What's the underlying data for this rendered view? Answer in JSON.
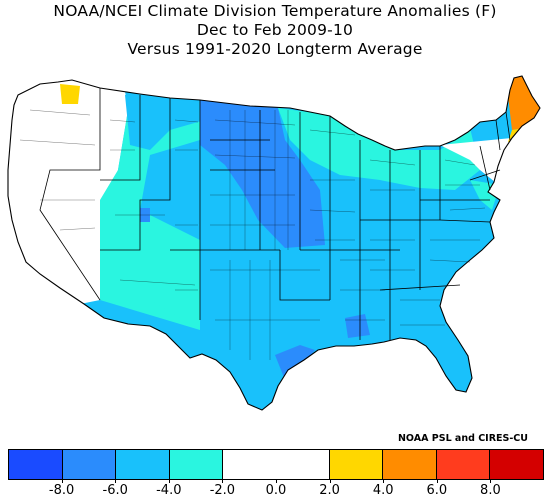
{
  "title": {
    "line1": "NOAA/NCEI Climate Division Temperature Anomalies (F)",
    "line2": "Dec to Feb 2009-10",
    "line3": "Versus 1991-2020 Longterm Average"
  },
  "credit": "NOAA PSL and CIRES-CU",
  "colors": {
    "bin_m10_m8": "#1a4bff",
    "bin_m8_m6": "#2b8cfc",
    "bin_m6_m4": "#19c1fb",
    "bin_m4_m2": "#2af5e0",
    "bin_m2_2": "#ffffff",
    "bin_2_4": "#ffd700",
    "bin_4_6": "#ff8c00",
    "bin_6_8": "#ff3c1e",
    "bin_8_10": "#d40000"
  },
  "legend": {
    "bins": [
      {
        "low": -10,
        "high": -8,
        "color": "#1a4bff"
      },
      {
        "low": -8,
        "high": -6,
        "color": "#2b8cfc"
      },
      {
        "low": -6,
        "high": -4,
        "color": "#19c1fb"
      },
      {
        "low": -4,
        "high": -2,
        "color": "#2af5e0"
      },
      {
        "low": -2,
        "high": 2,
        "color": "#ffffff"
      },
      {
        "low": 2,
        "high": 4,
        "color": "#ffd700"
      },
      {
        "low": 4,
        "high": 6,
        "color": "#ff8c00"
      },
      {
        "low": 6,
        "high": 8,
        "color": "#ff3c1e"
      },
      {
        "low": 8,
        "high": 10,
        "color": "#d40000"
      }
    ],
    "tick_values": [
      -8,
      -6,
      -4,
      -2,
      0,
      2,
      4,
      6,
      8
    ],
    "tick_labels": [
      "-8.0",
      "-6.0",
      "-4.0",
      "-2.0",
      "0.0",
      "2.0",
      "4.0",
      "6.0",
      "8.0"
    ]
  },
  "map": {
    "regions": [
      {
        "name": "pacific-northwest",
        "anomaly_class": "-2 to 2"
      },
      {
        "name": "california-great-basin",
        "anomaly_class": "-2 to 2"
      },
      {
        "name": "northern-rockies",
        "anomaly_class": "-4 to -2"
      },
      {
        "name": "northern-plains",
        "anomaly_class": "-8 to -6"
      },
      {
        "name": "central-plains",
        "anomaly_class": "-8 to -6"
      },
      {
        "name": "southwest",
        "anomaly_class": "-4 to -2"
      },
      {
        "name": "south-central",
        "anomaly_class": "-6 to -4"
      },
      {
        "name": "southeast",
        "anomaly_class": "-6 to -4"
      },
      {
        "name": "great-lakes",
        "anomaly_class": "-4 to -2"
      },
      {
        "name": "northeast",
        "anomaly_class": "-2 to 2"
      },
      {
        "name": "maine",
        "anomaly_class": "4 to 6"
      },
      {
        "name": "northern-washington",
        "anomaly_class": "2 to 4"
      }
    ]
  }
}
